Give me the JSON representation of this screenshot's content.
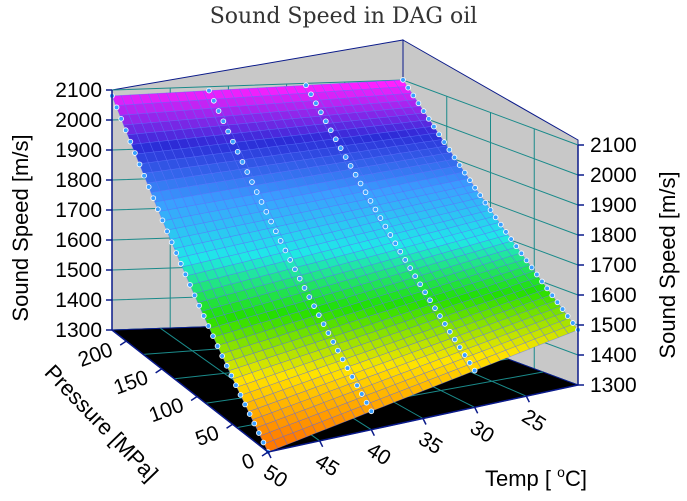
{
  "chart_data": {
    "type": "surface",
    "title": "Sound Speed in DAG oil",
    "zlabel_left": "Sound Speed [m/s]",
    "zlabel_right": "Sound Speed [m/s]",
    "ylabel": "Pressure [MPa]",
    "xlabel": "Temp [ °C]",
    "xlabel_parts": [
      "Temp [ ",
      "o",
      "C]"
    ],
    "zlim": [
      1300,
      2100
    ],
    "z_ticks": [
      "1300",
      "1400",
      "1500",
      "1600",
      "1700",
      "1800",
      "1900",
      "2000",
      "2100"
    ],
    "pressure_ticks": [
      "0",
      "50",
      "100",
      "150",
      "200"
    ],
    "temp_ticks": [
      "50",
      "45",
      "40",
      "35",
      "30",
      "25"
    ],
    "pressure_range": [
      0,
      220
    ],
    "temp_range": [
      20,
      50
    ],
    "corner_values": [
      {
        "temp": 50,
        "pressure": 0,
        "sound_speed": 1300
      },
      {
        "temp": 20,
        "pressure": 0,
        "sound_speed": 1480
      },
      {
        "temp": 50,
        "pressure": 220,
        "sound_speed": 2080
      },
      {
        "temp": 20,
        "pressure": 220,
        "sound_speed": 2100
      }
    ],
    "measured_isotherms_degC": [
      20,
      30,
      40,
      50
    ],
    "colormap": [
      "#ff7a00",
      "#ffe500",
      "#22e000",
      "#20e8e8",
      "#3b9eff",
      "#2b2bd6",
      "#ff20ff"
    ],
    "grid": true
  }
}
